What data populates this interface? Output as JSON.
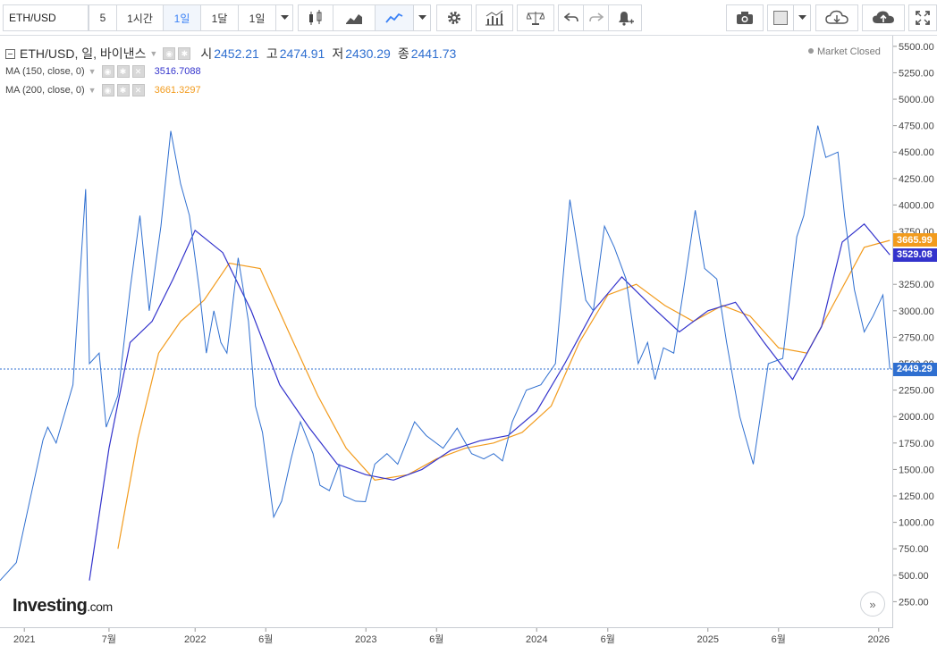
{
  "toolbar": {
    "symbol": "ETH/USD",
    "intervals": [
      "5",
      "1시간",
      "1일",
      "1달",
      "1일"
    ],
    "active_interval": "1일"
  },
  "legend": {
    "title": "ETH/USD, 일, 바이낸스",
    "open_label": "시",
    "open": "2452.21",
    "high_label": "고",
    "high": "2474.91",
    "low_label": "저",
    "low": "2430.29",
    "close_label": "종",
    "close": "2441.73",
    "ma150_label": "MA (150, close, 0)",
    "ma150_value": "3516.7088",
    "ma150_color": "#3333cc",
    "ma200_label": "MA (200, close, 0)",
    "ma200_value": "3661.3297",
    "ma200_color": "#f29b1d"
  },
  "market_status": "Market Closed",
  "price_tags": {
    "ma200": "3665.99",
    "ma150": "3529.08",
    "last": "2449.29"
  },
  "logo": {
    "main": "Investing",
    "suffix": ".com"
  },
  "chart_data": {
    "type": "line",
    "price_color": "#2f6fd0",
    "y_ticks": [
      250,
      500,
      750,
      1000,
      1250,
      1500,
      1750,
      2000,
      2250,
      2500,
      2750,
      3000,
      3250,
      3500,
      3750,
      4000,
      4250,
      4500,
      4750,
      5000,
      5250,
      5500
    ],
    "y_tick_labels": [
      "250.00",
      "500.00",
      "750.00",
      "1000.00",
      "1250.00",
      "1500.00",
      "1750.00",
      "2000.00",
      "2250.00",
      "2500.00",
      "2750.00",
      "3000.00",
      "3250.00",
      "3500.00",
      "3750.00",
      "4000.00",
      "4250.00",
      "4500.00",
      "4750.00",
      "5000.00",
      "5250.00",
      "5500.00"
    ],
    "ylim": [
      0,
      5600
    ],
    "x_ticks": [
      "2021",
      "7월",
      "2022",
      "6월",
      "2023",
      "6월",
      "2024",
      "6월",
      "2025",
      "6월",
      "2026"
    ],
    "x_tick_dates": [
      "2021-01-01",
      "2021-07-01",
      "2022-01-01",
      "2022-06-01",
      "2023-01-01",
      "2023-06-01",
      "2024-01-01",
      "2024-06-01",
      "2025-01-01",
      "2025-06-01",
      "2026-01-01"
    ],
    "xlim": [
      "2020-11-10",
      "2026-02-01"
    ],
    "series": [
      {
        "name": "ETH/USD",
        "x": [
          "2020-11-10",
          "2020-12-15",
          "2021-01-10",
          "2021-02-10",
          "2021-02-20",
          "2021-03-10",
          "2021-04-15",
          "2021-05-12",
          "2021-05-20",
          "2021-06-10",
          "2021-06-25",
          "2021-07-20",
          "2021-08-15",
          "2021-09-05",
          "2021-09-25",
          "2021-10-20",
          "2021-11-10",
          "2021-12-01",
          "2021-12-20",
          "2022-01-10",
          "2022-01-25",
          "2022-02-10",
          "2022-02-25",
          "2022-03-10",
          "2022-04-03",
          "2022-04-25",
          "2022-05-10",
          "2022-05-25",
          "2022-06-18",
          "2022-07-05",
          "2022-07-25",
          "2022-08-14",
          "2022-09-10",
          "2022-09-25",
          "2022-10-15",
          "2022-11-05",
          "2022-11-15",
          "2022-12-10",
          "2022-12-31",
          "2023-01-20",
          "2023-02-15",
          "2023-03-10",
          "2023-04-15",
          "2023-05-10",
          "2023-06-15",
          "2023-07-15",
          "2023-08-15",
          "2023-09-10",
          "2023-10-01",
          "2023-10-20",
          "2023-11-10",
          "2023-12-10",
          "2024-01-10",
          "2024-02-10",
          "2024-03-12",
          "2024-04-15",
          "2024-05-01",
          "2024-05-25",
          "2024-06-15",
          "2024-07-10",
          "2024-08-05",
          "2024-08-25",
          "2024-09-10",
          "2024-09-28",
          "2024-10-20",
          "2024-11-10",
          "2024-12-05",
          "2024-12-25",
          "2025-01-20",
          "2025-02-10",
          "2025-03-10",
          "2025-04-08",
          "2025-05-10",
          "2025-06-10",
          "2025-07-10",
          "2025-07-25",
          "2025-08-24",
          "2025-09-10",
          "2025-10-06",
          "2025-10-20",
          "2025-11-10",
          "2025-12-01",
          "2025-12-20",
          "2026-01-10",
          "2026-01-25"
        ],
        "y": [
          450,
          620,
          1150,
          1780,
          1900,
          1750,
          2300,
          4150,
          2500,
          2600,
          1900,
          2200,
          3200,
          3900,
          3000,
          3800,
          4700,
          4200,
          3900,
          3200,
          2600,
          3000,
          2700,
          2600,
          3500,
          2900,
          2100,
          1850,
          1050,
          1200,
          1600,
          1950,
          1650,
          1350,
          1300,
          1550,
          1250,
          1200,
          1195,
          1550,
          1650,
          1550,
          1950,
          1820,
          1700,
          1890,
          1650,
          1600,
          1650,
          1580,
          1950,
          2250,
          2300,
          2500,
          4050,
          3100,
          3000,
          3800,
          3600,
          3300,
          2500,
          2700,
          2350,
          2650,
          2600,
          3200,
          3950,
          3400,
          3300,
          2700,
          2000,
          1550,
          2500,
          2550,
          3700,
          3900,
          4750,
          4450,
          4500,
          3900,
          3200,
          2800,
          2950,
          3150,
          2449
        ]
      },
      {
        "name": "MA (150, close, 0)",
        "x": [
          "2021-05-20",
          "2021-07-01",
          "2021-08-15",
          "2021-10-01",
          "2021-11-15",
          "2022-01-01",
          "2022-03-01",
          "2022-05-01",
          "2022-07-01",
          "2022-09-01",
          "2022-11-01",
          "2023-01-01",
          "2023-03-01",
          "2023-05-01",
          "2023-07-01",
          "2023-09-01",
          "2023-11-01",
          "2024-01-01",
          "2024-03-01",
          "2024-05-01",
          "2024-07-01",
          "2024-09-01",
          "2024-11-01",
          "2025-01-01",
          "2025-03-01",
          "2025-05-01",
          "2025-07-01",
          "2025-09-01",
          "2025-10-15",
          "2025-12-01",
          "2026-01-25"
        ],
        "y": [
          450,
          1700,
          2700,
          2900,
          3300,
          3760,
          3550,
          3000,
          2300,
          1900,
          1550,
          1450,
          1400,
          1500,
          1680,
          1770,
          1820,
          2050,
          2500,
          3000,
          3320,
          3050,
          2800,
          3000,
          3080,
          2700,
          2350,
          2850,
          3650,
          3820,
          3529
        ]
      },
      {
        "name": "MA (200, close, 0)",
        "x": [
          "2021-07-20",
          "2021-09-01",
          "2021-10-15",
          "2021-12-01",
          "2022-01-20",
          "2022-03-15",
          "2022-05-20",
          "2022-07-20",
          "2022-09-20",
          "2022-11-20",
          "2023-01-20",
          "2023-04-01",
          "2023-06-01",
          "2023-08-01",
          "2023-10-01",
          "2023-12-01",
          "2024-02-01",
          "2024-04-01",
          "2024-06-01",
          "2024-08-01",
          "2024-10-01",
          "2024-12-01",
          "2025-02-01",
          "2025-04-01",
          "2025-06-01",
          "2025-08-01",
          "2025-10-01",
          "2025-12-01",
          "2026-01-25"
        ],
        "y": [
          750,
          1800,
          2600,
          2900,
          3100,
          3450,
          3400,
          2800,
          2200,
          1700,
          1400,
          1450,
          1600,
          1700,
          1750,
          1850,
          2100,
          2700,
          3150,
          3250,
          3050,
          2900,
          3050,
          2950,
          2650,
          2600,
          3100,
          3600,
          3666
        ]
      }
    ],
    "last_price": 2449.29,
    "grid": false,
    "legend_position": "top-left"
  }
}
